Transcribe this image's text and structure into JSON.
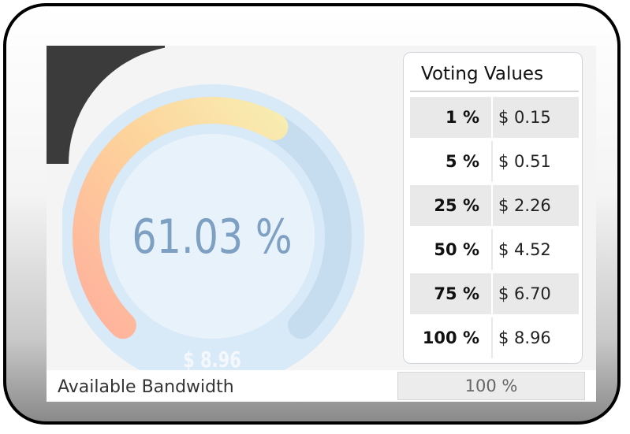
{
  "gauge": {
    "value_text": "61.03 %",
    "fraction": 0.6103,
    "amount": "$ 8.96",
    "colors": {
      "start": "#ffb09c",
      "mid": "#fdd39b",
      "end": "#f8ecb0",
      "track": "#c6ddf0",
      "ring": "#d8e9f8",
      "face": "#e8f2fb"
    }
  },
  "voting": {
    "title": "Voting Values",
    "rows": [
      {
        "percent": "1 %",
        "value": "$ 0.15"
      },
      {
        "percent": "5 %",
        "value": "$ 0.51"
      },
      {
        "percent": "25 %",
        "value": "$ 2.26"
      },
      {
        "percent": "50 %",
        "value": "$ 4.52"
      },
      {
        "percent": "75 %",
        "value": "$ 6.70"
      },
      {
        "percent": "100 %",
        "value": "$ 8.96"
      }
    ]
  },
  "bandwidth": {
    "label": "Available Bandwidth",
    "value": "100 %"
  }
}
